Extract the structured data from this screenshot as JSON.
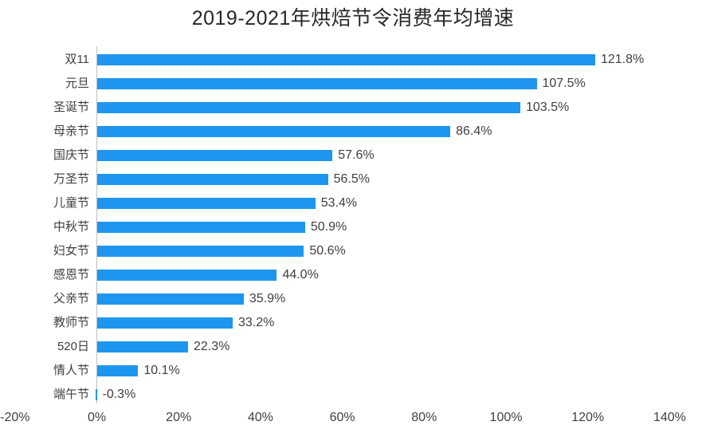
{
  "chart_data": {
    "type": "bar",
    "orientation": "horizontal",
    "title": "2019-2021年烘焙节令消费年均增速",
    "categories": [
      "双11",
      "元旦",
      "圣诞节",
      "母亲节",
      "国庆节",
      "万圣节",
      "儿童节",
      "中秋节",
      "妇女节",
      "感恩节",
      "父亲节",
      "教师节",
      "520日",
      "情人节",
      "端午节"
    ],
    "values": [
      121.8,
      107.5,
      103.5,
      86.4,
      57.6,
      56.5,
      53.4,
      50.9,
      50.6,
      44.0,
      35.9,
      33.2,
      22.3,
      10.1,
      -0.3
    ],
    "value_labels": [
      "121.8%",
      "107.5%",
      "103.5%",
      "86.4%",
      "57.6%",
      "56.5%",
      "53.4%",
      "50.9%",
      "50.6%",
      "44.0%",
      "35.9%",
      "33.2%",
      "22.3%",
      "10.1%",
      "-0.3%"
    ],
    "x_tick_labels": [
      "-20%",
      "0%",
      "20%",
      "40%",
      "60%",
      "80%",
      "100%",
      "120%",
      "140%"
    ],
    "x_tick_values": [
      -20,
      0,
      20,
      40,
      60,
      80,
      100,
      120,
      140
    ],
    "xlim": [
      -20,
      140
    ],
    "grid": false,
    "legend": false,
    "bar_color": "#1e96f0",
    "axis_line_color": "#bfbfbf",
    "text_color": "#404040",
    "title_color": "#262626",
    "background_color": "#ffffff"
  }
}
